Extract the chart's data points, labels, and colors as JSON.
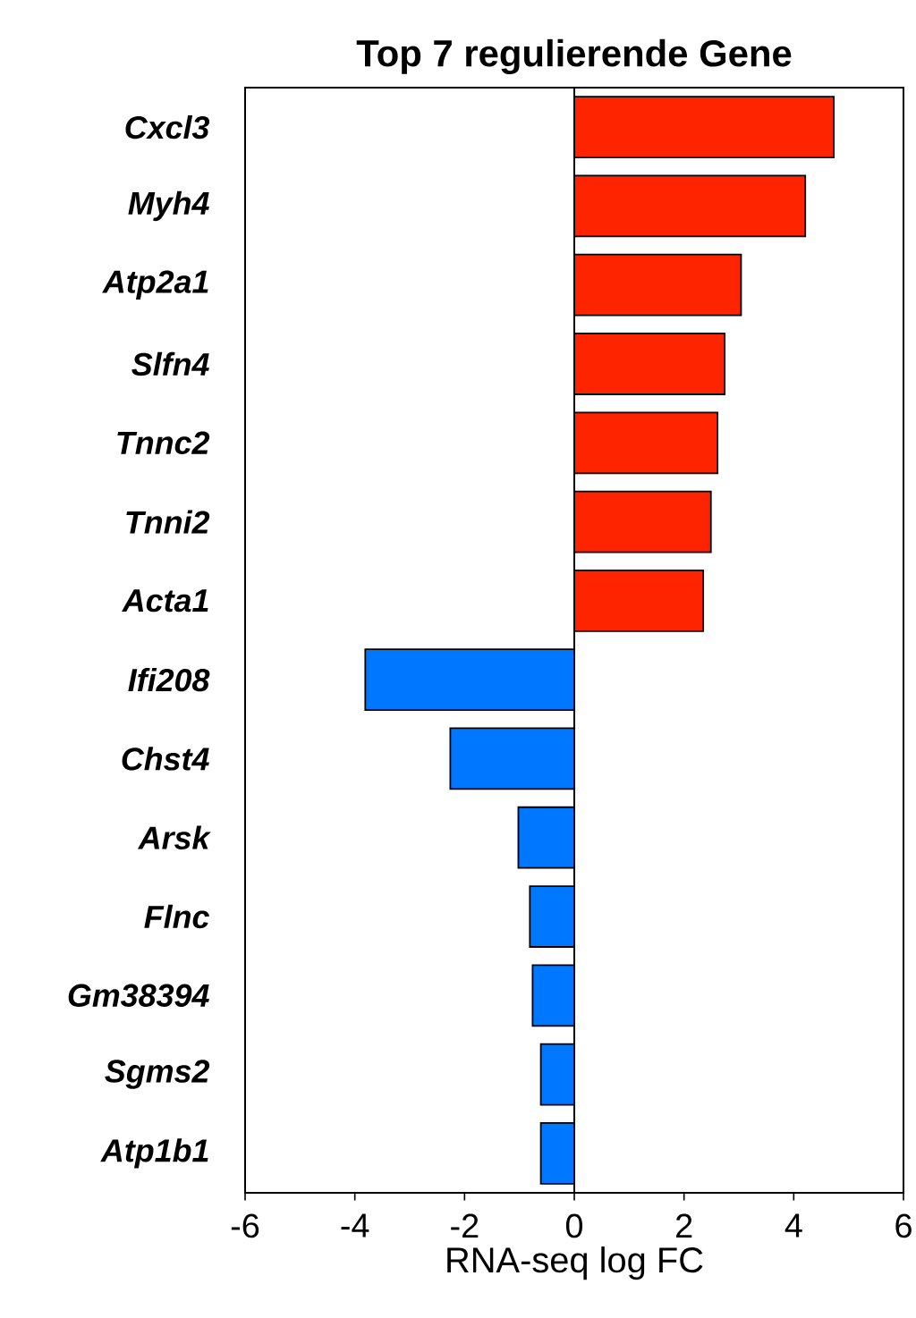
{
  "chart_data": {
    "type": "bar",
    "orientation": "horizontal",
    "title": "Top 7 regulierende Gene",
    "xlabel": "RNA-seq log FC",
    "categories": [
      "Cxcl3",
      "Myh4",
      "Atp2a1",
      "Slfn4",
      "Tnnc2",
      "Tnni2",
      "Acta1",
      "Ifi208",
      "Chst4",
      "Arsk",
      "Flnc",
      "Gm38394",
      "Sgms2",
      "Atp1b1"
    ],
    "values": [
      4.73,
      4.21,
      3.04,
      2.74,
      2.61,
      2.49,
      2.35,
      -3.81,
      -2.26,
      -1.02,
      -0.81,
      -0.76,
      -0.61,
      -0.61
    ],
    "colors": [
      "#ff2400",
      "#ff2400",
      "#ff2400",
      "#ff2400",
      "#ff2400",
      "#ff2400",
      "#ff2400",
      "#0077ff",
      "#0077ff",
      "#0077ff",
      "#0077ff",
      "#0077ff",
      "#0077ff",
      "#0077ff"
    ],
    "xlim": [
      -6,
      6
    ],
    "xticks": [
      -6,
      -4,
      -2,
      0,
      2,
      4,
      6
    ],
    "ref_lines": [
      {
        "axis": "x",
        "value": 0
      }
    ],
    "grid": false
  }
}
